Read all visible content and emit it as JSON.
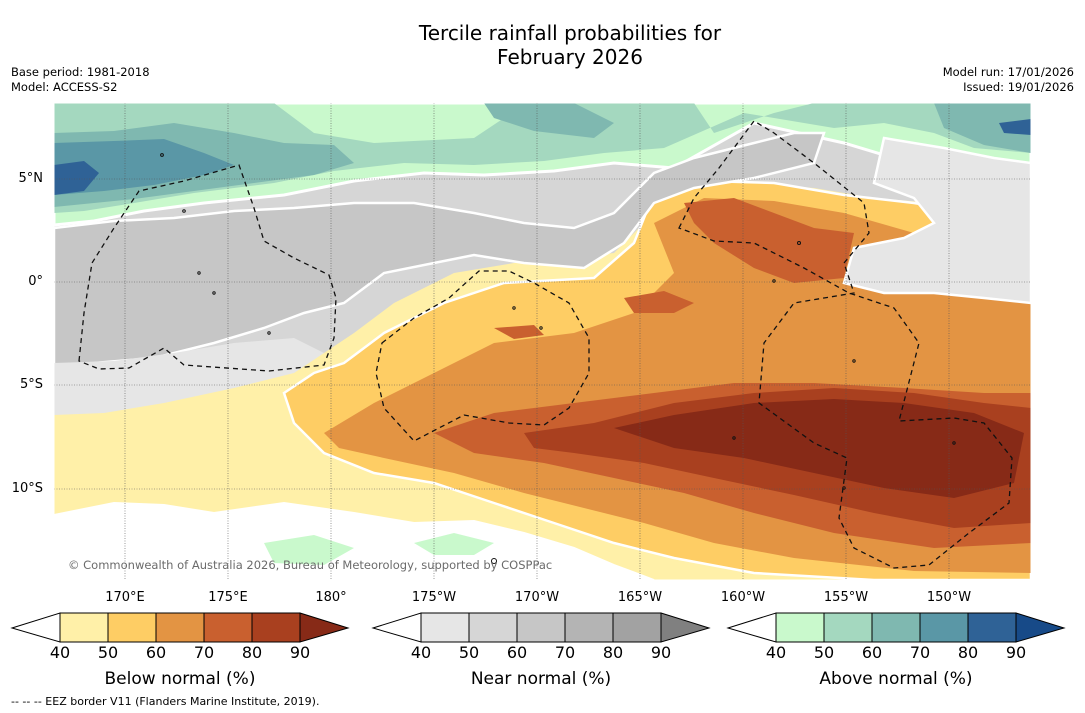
{
  "header": {
    "title_line1": "Tercile rainfall probabilities for",
    "title_line2": "February 2026",
    "base_period": "Base period: 1981-2018",
    "model": "Model: ACCESS-S2",
    "model_run": "Model run: 17/01/2026",
    "issued": "Issued: 19/01/2026"
  },
  "map": {
    "lat_labels": [
      "5°N",
      "0°",
      "5°S",
      "10°S"
    ],
    "lon_labels": [
      "170°E",
      "175°E",
      "180°",
      "175°W",
      "170°W",
      "165°W",
      "160°W",
      "155°W",
      "150°W"
    ],
    "copyright": "© Commonwealth of Australia 2026, Bureau of Meteorology, supported by COSPPac"
  },
  "colorbars": [
    {
      "name": "below",
      "label": "Below normal (%)",
      "ticks": [
        "40",
        "50",
        "60",
        "70",
        "80",
        "90"
      ],
      "low_color": "#ffffff",
      "colors": [
        "#fff0a8",
        "#fecd64",
        "#e39443",
        "#c9602f",
        "#a9401f"
      ],
      "high_color": "#872a17"
    },
    {
      "name": "near",
      "label": "Near normal (%)",
      "ticks": [
        "40",
        "50",
        "60",
        "70",
        "80",
        "90"
      ],
      "low_color": "#ffffff",
      "colors": [
        "#e6e6e6",
        "#d6d6d6",
        "#c6c6c6",
        "#b4b4b4",
        "#a2a2a2"
      ],
      "high_color": "#808080"
    },
    {
      "name": "above",
      "label": "Above normal (%)",
      "ticks": [
        "40",
        "50",
        "60",
        "70",
        "80",
        "90"
      ],
      "low_color": "#ffffff",
      "colors": [
        "#c9f9cc",
        "#a4d8bf",
        "#7fb8b0",
        "#5a97a6",
        "#2f6296"
      ],
      "high_color": "#174a88"
    }
  ],
  "footnote": "--  --  -- EEZ border V11 (Flanders Marine Institute, 2019)."
}
